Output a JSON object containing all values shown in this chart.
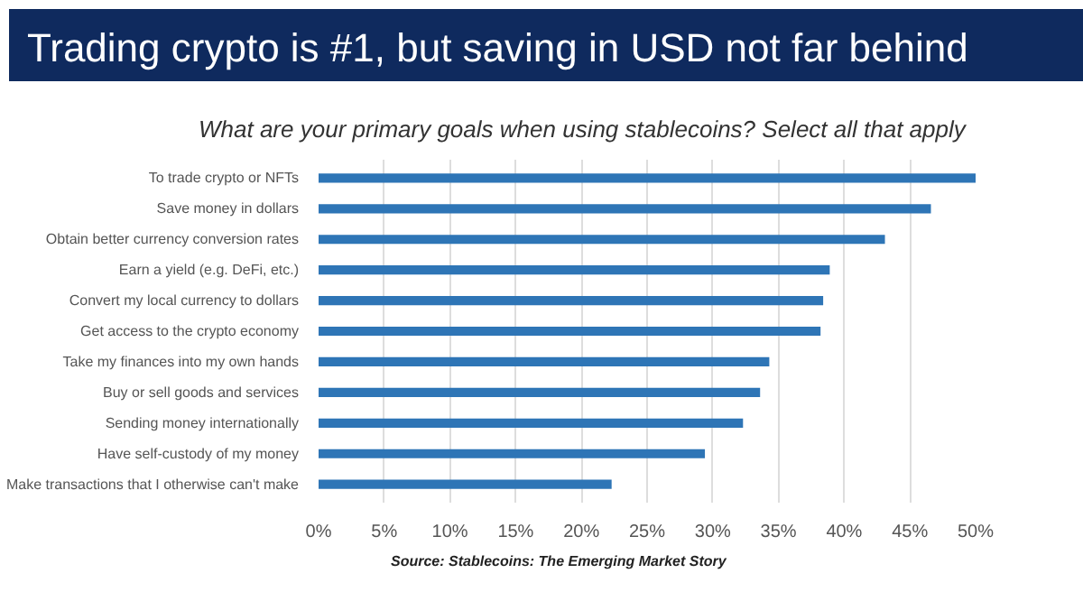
{
  "chart_data": {
    "type": "bar",
    "orientation": "horizontal",
    "title": "Trading crypto is #1, but saving in USD not far behind",
    "subtitle": "What are your primary goals when using stablecoins? Select all that apply",
    "categories": [
      "To trade crypto or NFTs",
      "Save money in dollars",
      "Obtain better currency conversion rates",
      "Earn a yield (e.g. DeFi, etc.)",
      "Convert my local currency to dollars",
      "Get access to the crypto economy",
      "Take my finances into my own hands",
      "Buy or sell goods and services",
      "Sending money internationally",
      "Have self-custody of my money",
      "Make transactions that I otherwise can't make"
    ],
    "values": [
      50,
      46.6,
      43.1,
      38.9,
      38.4,
      38.2,
      34.3,
      33.6,
      32.3,
      29.4,
      22.3
    ],
    "color": "#2e75b6",
    "xlim": [
      0,
      50
    ],
    "xticks": [
      {
        "value": 0,
        "label": "0%"
      },
      {
        "value": 5,
        "label": "5%"
      },
      {
        "value": 10,
        "label": "10%"
      },
      {
        "value": 15,
        "label": "15%"
      },
      {
        "value": 20,
        "label": "20%"
      },
      {
        "value": 25,
        "label": "25%"
      },
      {
        "value": 30,
        "label": "30%"
      },
      {
        "value": 35,
        "label": "35%"
      },
      {
        "value": 40,
        "label": "40%"
      },
      {
        "value": 45,
        "label": "45%"
      },
      {
        "value": 50,
        "label": "50%"
      }
    ],
    "grid": "x",
    "annotations": [
      "Source: Stablecoins: The Emerging Market Story"
    ]
  }
}
